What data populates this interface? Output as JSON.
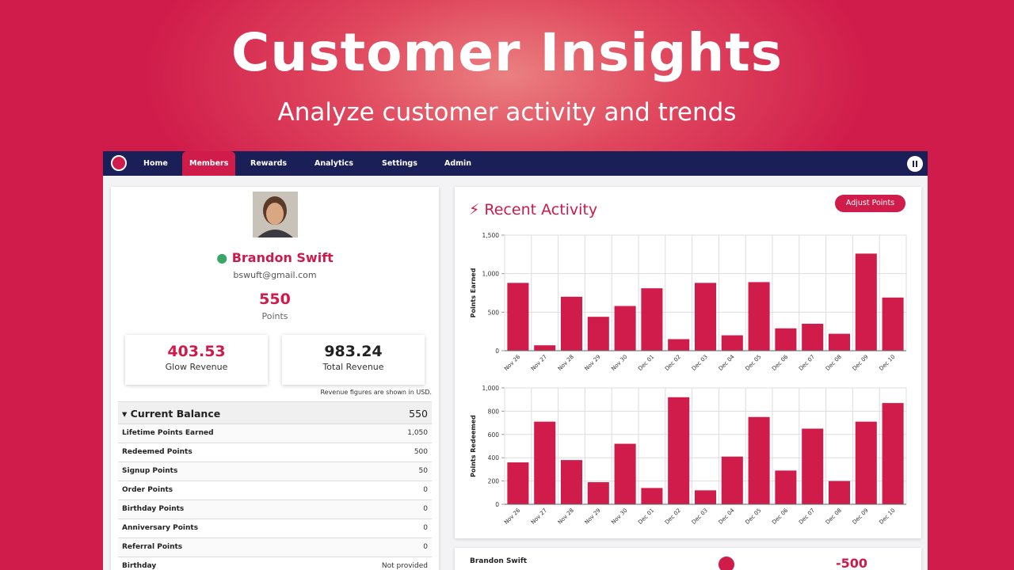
{
  "header": {
    "title": "Customer Insights",
    "subtitle": "Analyze customer activity and trends"
  },
  "nav": {
    "items": [
      "Home",
      "Members",
      "Rewards",
      "Analytics",
      "Settings",
      "Admin"
    ]
  },
  "profile": {
    "name": "Brandon Swift",
    "email": "bswuft@gmail.com",
    "points": "550",
    "points_label": "Points"
  },
  "revenue": {
    "cards": [
      {
        "value": "403.53",
        "label": "Glow Revenue"
      },
      {
        "value": "983.24",
        "label": "Total Revenue"
      }
    ],
    "note": "Revenue figures are shown in USD."
  },
  "balance": {
    "title": "Current Balance",
    "value": "550",
    "rows": [
      [
        "Lifetime Points Earned",
        "1,050"
      ],
      [
        "Redeemed Points",
        "500"
      ],
      [
        "Signup Points",
        "50"
      ],
      [
        "Order Points",
        "0"
      ],
      [
        "Birthday Points",
        "0"
      ],
      [
        "Anniversary Points",
        "0"
      ],
      [
        "Referral Points",
        "0"
      ],
      [
        "Birthday",
        "Not provided"
      ]
    ]
  },
  "activity": {
    "title": "Recent Activity",
    "button": "Adjust Points"
  },
  "chart_data": [
    {
      "type": "bar",
      "ylabel": "Points Earned",
      "categories": [
        "Nov 26",
        "Nov 27",
        "Nov 28",
        "Nov 29",
        "Nov 30",
        "Dec 01",
        "Dec 02",
        "Dec 03",
        "Dec 04",
        "Dec 05",
        "Dec 06",
        "Dec 07",
        "Dec 08",
        "Dec 09",
        "Dec 10"
      ],
      "values": [
        880,
        70,
        700,
        440,
        580,
        810,
        150,
        880,
        200,
        890,
        290,
        350,
        220,
        1260,
        690
      ],
      "color": "#d01c4b",
      "ylim": [
        0,
        1500
      ],
      "yticks": [
        0,
        500,
        {
          "value": 1000,
          "label": "1,000"
        },
        {
          "value": 1500,
          "label": "1,500"
        }
      ],
      "grid": true
    },
    {
      "type": "bar",
      "ylabel": "Points Redeemed",
      "categories": [
        "Nov 26",
        "Nov 27",
        "Nov 28",
        "Nov 29",
        "Nov 30",
        "Dec 01",
        "Dec 02",
        "Dec 03",
        "Dec 04",
        "Dec 05",
        "Dec 06",
        "Dec 07",
        "Dec 08",
        "Dec 09",
        "Dec 10"
      ],
      "values": [
        360,
        710,
        380,
        190,
        520,
        140,
        920,
        120,
        410,
        750,
        290,
        650,
        200,
        710,
        870
      ],
      "color": "#d01c4b",
      "ylim": [
        0,
        1000
      ],
      "yticks": [
        0,
        200,
        400,
        600,
        800,
        {
          "value": 1000,
          "label": "1,000"
        }
      ],
      "grid": true
    }
  ],
  "transaction": {
    "name": "Brandon Swift",
    "points": "-500"
  }
}
